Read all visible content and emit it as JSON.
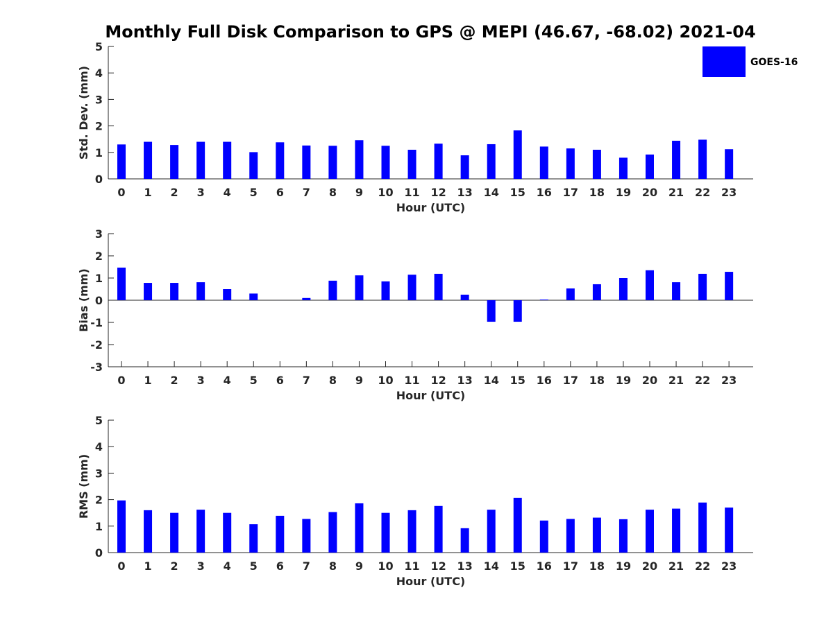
{
  "title": "Monthly Full Disk Comparison to GPS @ MEPI (46.67, -68.02) 2021-04",
  "legend": {
    "label": "GOES-16",
    "color": "#0000ff",
    "placement": "top-right"
  },
  "chart_data": [
    {
      "type": "bar",
      "xlabel": "Hour (UTC)",
      "ylabel": "Std. Dev. (mm)",
      "categories": [
        "0",
        "1",
        "2",
        "3",
        "4",
        "5",
        "6",
        "7",
        "8",
        "9",
        "10",
        "11",
        "12",
        "13",
        "14",
        "15",
        "16",
        "17",
        "18",
        "19",
        "20",
        "21",
        "22",
        "23"
      ],
      "series": [
        {
          "name": "GOES-16",
          "values": [
            1.3,
            1.4,
            1.28,
            1.4,
            1.4,
            1.01,
            1.38,
            1.26,
            1.25,
            1.46,
            1.25,
            1.1,
            1.33,
            0.89,
            1.31,
            1.83,
            1.22,
            1.15,
            1.1,
            0.8,
            0.92,
            1.44,
            1.48,
            1.12
          ]
        }
      ],
      "ylim": [
        0,
        5
      ],
      "yticks": [
        "0",
        "1",
        "2",
        "3",
        "4",
        "5"
      ]
    },
    {
      "type": "bar",
      "xlabel": "Hour (UTC)",
      "ylabel": "Bias (mm)",
      "categories": [
        "0",
        "1",
        "2",
        "3",
        "4",
        "5",
        "6",
        "7",
        "8",
        "9",
        "10",
        "11",
        "12",
        "13",
        "14",
        "15",
        "16",
        "17",
        "18",
        "19",
        "20",
        "21",
        "22",
        "23"
      ],
      "series": [
        {
          "name": "GOES-16",
          "values": [
            1.47,
            0.78,
            0.78,
            0.81,
            0.5,
            0.3,
            0.0,
            0.1,
            0.88,
            1.12,
            0.85,
            1.15,
            1.19,
            0.25,
            -0.97,
            -0.97,
            0.03,
            0.53,
            0.72,
            1.0,
            1.35,
            0.81,
            1.19,
            1.28
          ]
        }
      ],
      "ylim": [
        -3,
        3
      ],
      "yticks": [
        "-3",
        "-2",
        "-1",
        "0",
        "1",
        "2",
        "3"
      ]
    },
    {
      "type": "bar",
      "xlabel": "Hour (UTC)",
      "ylabel": "RMS (mm)",
      "categories": [
        "0",
        "1",
        "2",
        "3",
        "4",
        "5",
        "6",
        "7",
        "8",
        "9",
        "10",
        "11",
        "12",
        "13",
        "14",
        "15",
        "16",
        "17",
        "18",
        "19",
        "20",
        "21",
        "22",
        "23"
      ],
      "series": [
        {
          "name": "GOES-16",
          "values": [
            1.97,
            1.6,
            1.5,
            1.62,
            1.5,
            1.07,
            1.39,
            1.27,
            1.53,
            1.86,
            1.5,
            1.6,
            1.76,
            0.92,
            1.62,
            2.07,
            1.21,
            1.27,
            1.32,
            1.26,
            1.62,
            1.66,
            1.89,
            1.7
          ]
        }
      ],
      "ylim": [
        0,
        5
      ],
      "yticks": [
        "0",
        "1",
        "2",
        "3",
        "4",
        "5"
      ]
    }
  ]
}
